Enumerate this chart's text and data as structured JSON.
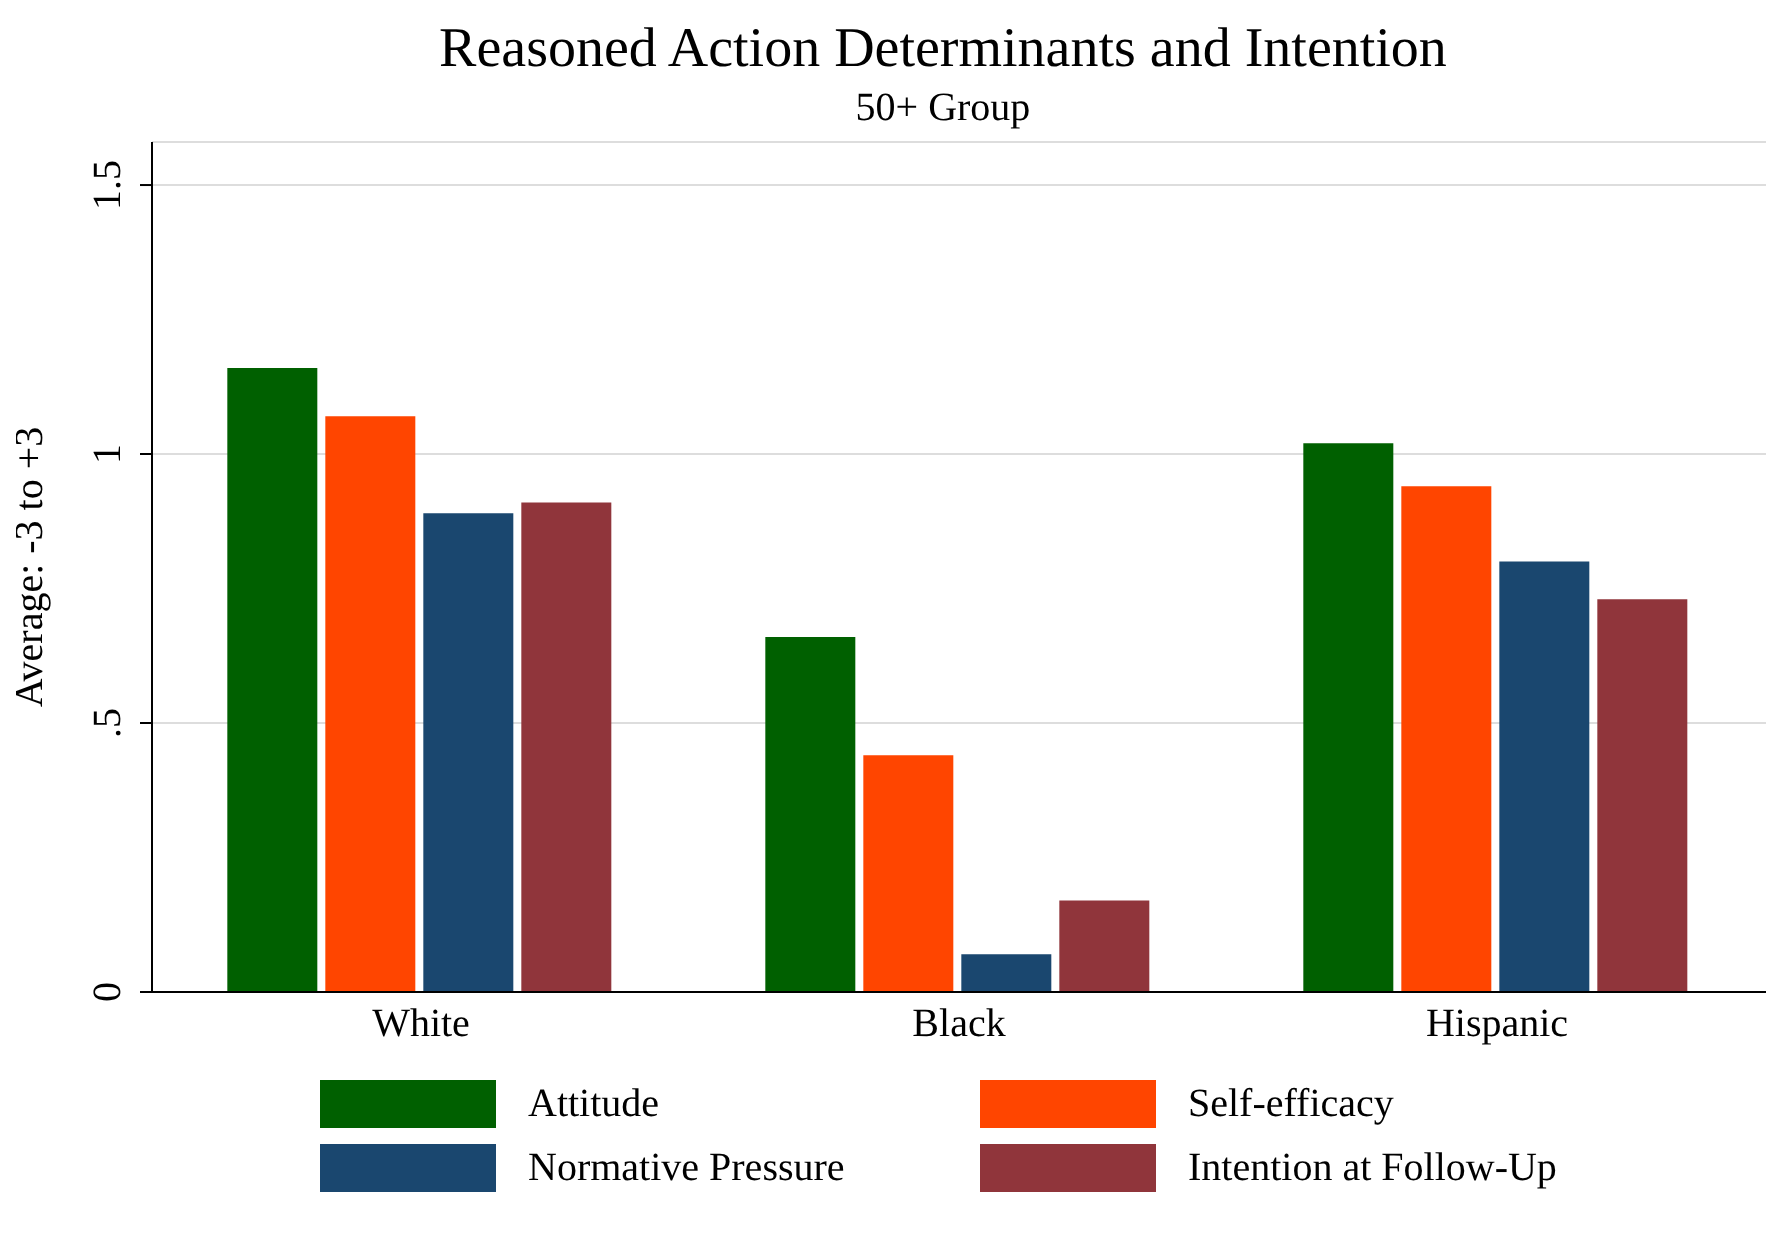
{
  "chart_data": {
    "type": "bar",
    "title": "Reasoned Action Determinants and Intention",
    "subtitle": "50+ Group",
    "ylabel": "Average: -3 to +3",
    "categories": [
      "White",
      "Black",
      "Hispanic"
    ],
    "series": [
      {
        "name": "Attitude",
        "color": "#006000",
        "values": [
          1.16,
          0.66,
          1.02
        ]
      },
      {
        "name": "Self-efficacy",
        "color": "#ff4500",
        "values": [
          1.07,
          0.44,
          0.94
        ]
      },
      {
        "name": "Normative Pressure",
        "color": "#1a476f",
        "values": [
          0.89,
          0.07,
          0.8
        ]
      },
      {
        "name": "Intention at Follow-Up",
        "color": "#90353b",
        "values": [
          0.91,
          0.17,
          0.73
        ]
      }
    ],
    "ylim": [
      0,
      1.58
    ],
    "yticks": [
      {
        "value": 0,
        "label": "0"
      },
      {
        "value": 0.5,
        "label": ".5"
      },
      {
        "value": 1,
        "label": "1"
      },
      {
        "value": 1.5,
        "label": "1.5"
      }
    ],
    "grid": "y",
    "legend": "bottom"
  }
}
